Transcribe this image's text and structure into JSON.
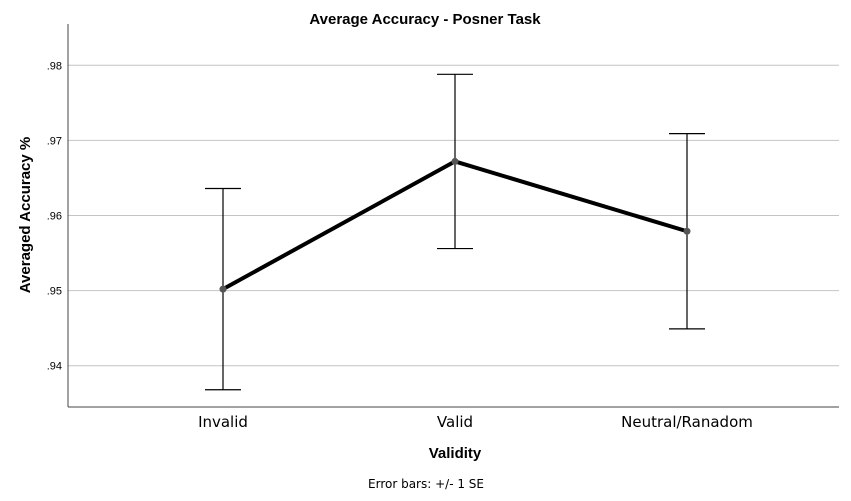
{
  "chart_data": {
    "type": "line",
    "title": "Average Accuracy - Posner Task",
    "xlabel": "Validity",
    "ylabel": "Averaged Accuracy %",
    "categories": [
      "Invalid",
      "Valid",
      "Neutral/Ranadom"
    ],
    "series": [
      {
        "values": [
          0.9502,
          0.9672,
          0.9579
        ],
        "error_low": [
          0.9368,
          0.9556,
          0.9449
        ],
        "error_high": [
          0.9636,
          0.9788,
          0.9709
        ]
      }
    ],
    "ylim": [
      0.9345,
      0.9855
    ],
    "yticks": [
      0.94,
      0.95,
      0.96,
      0.97,
      0.98
    ],
    "ytick_labels": [
      ".94",
      ".95",
      ".96",
      ".97",
      ".98"
    ],
    "grid": "horizontal",
    "footnote": "Error bars: +/- 1 SE",
    "line_color": "#000000",
    "marker_color": "#555555",
    "grid_color": "#c4c4c4"
  }
}
